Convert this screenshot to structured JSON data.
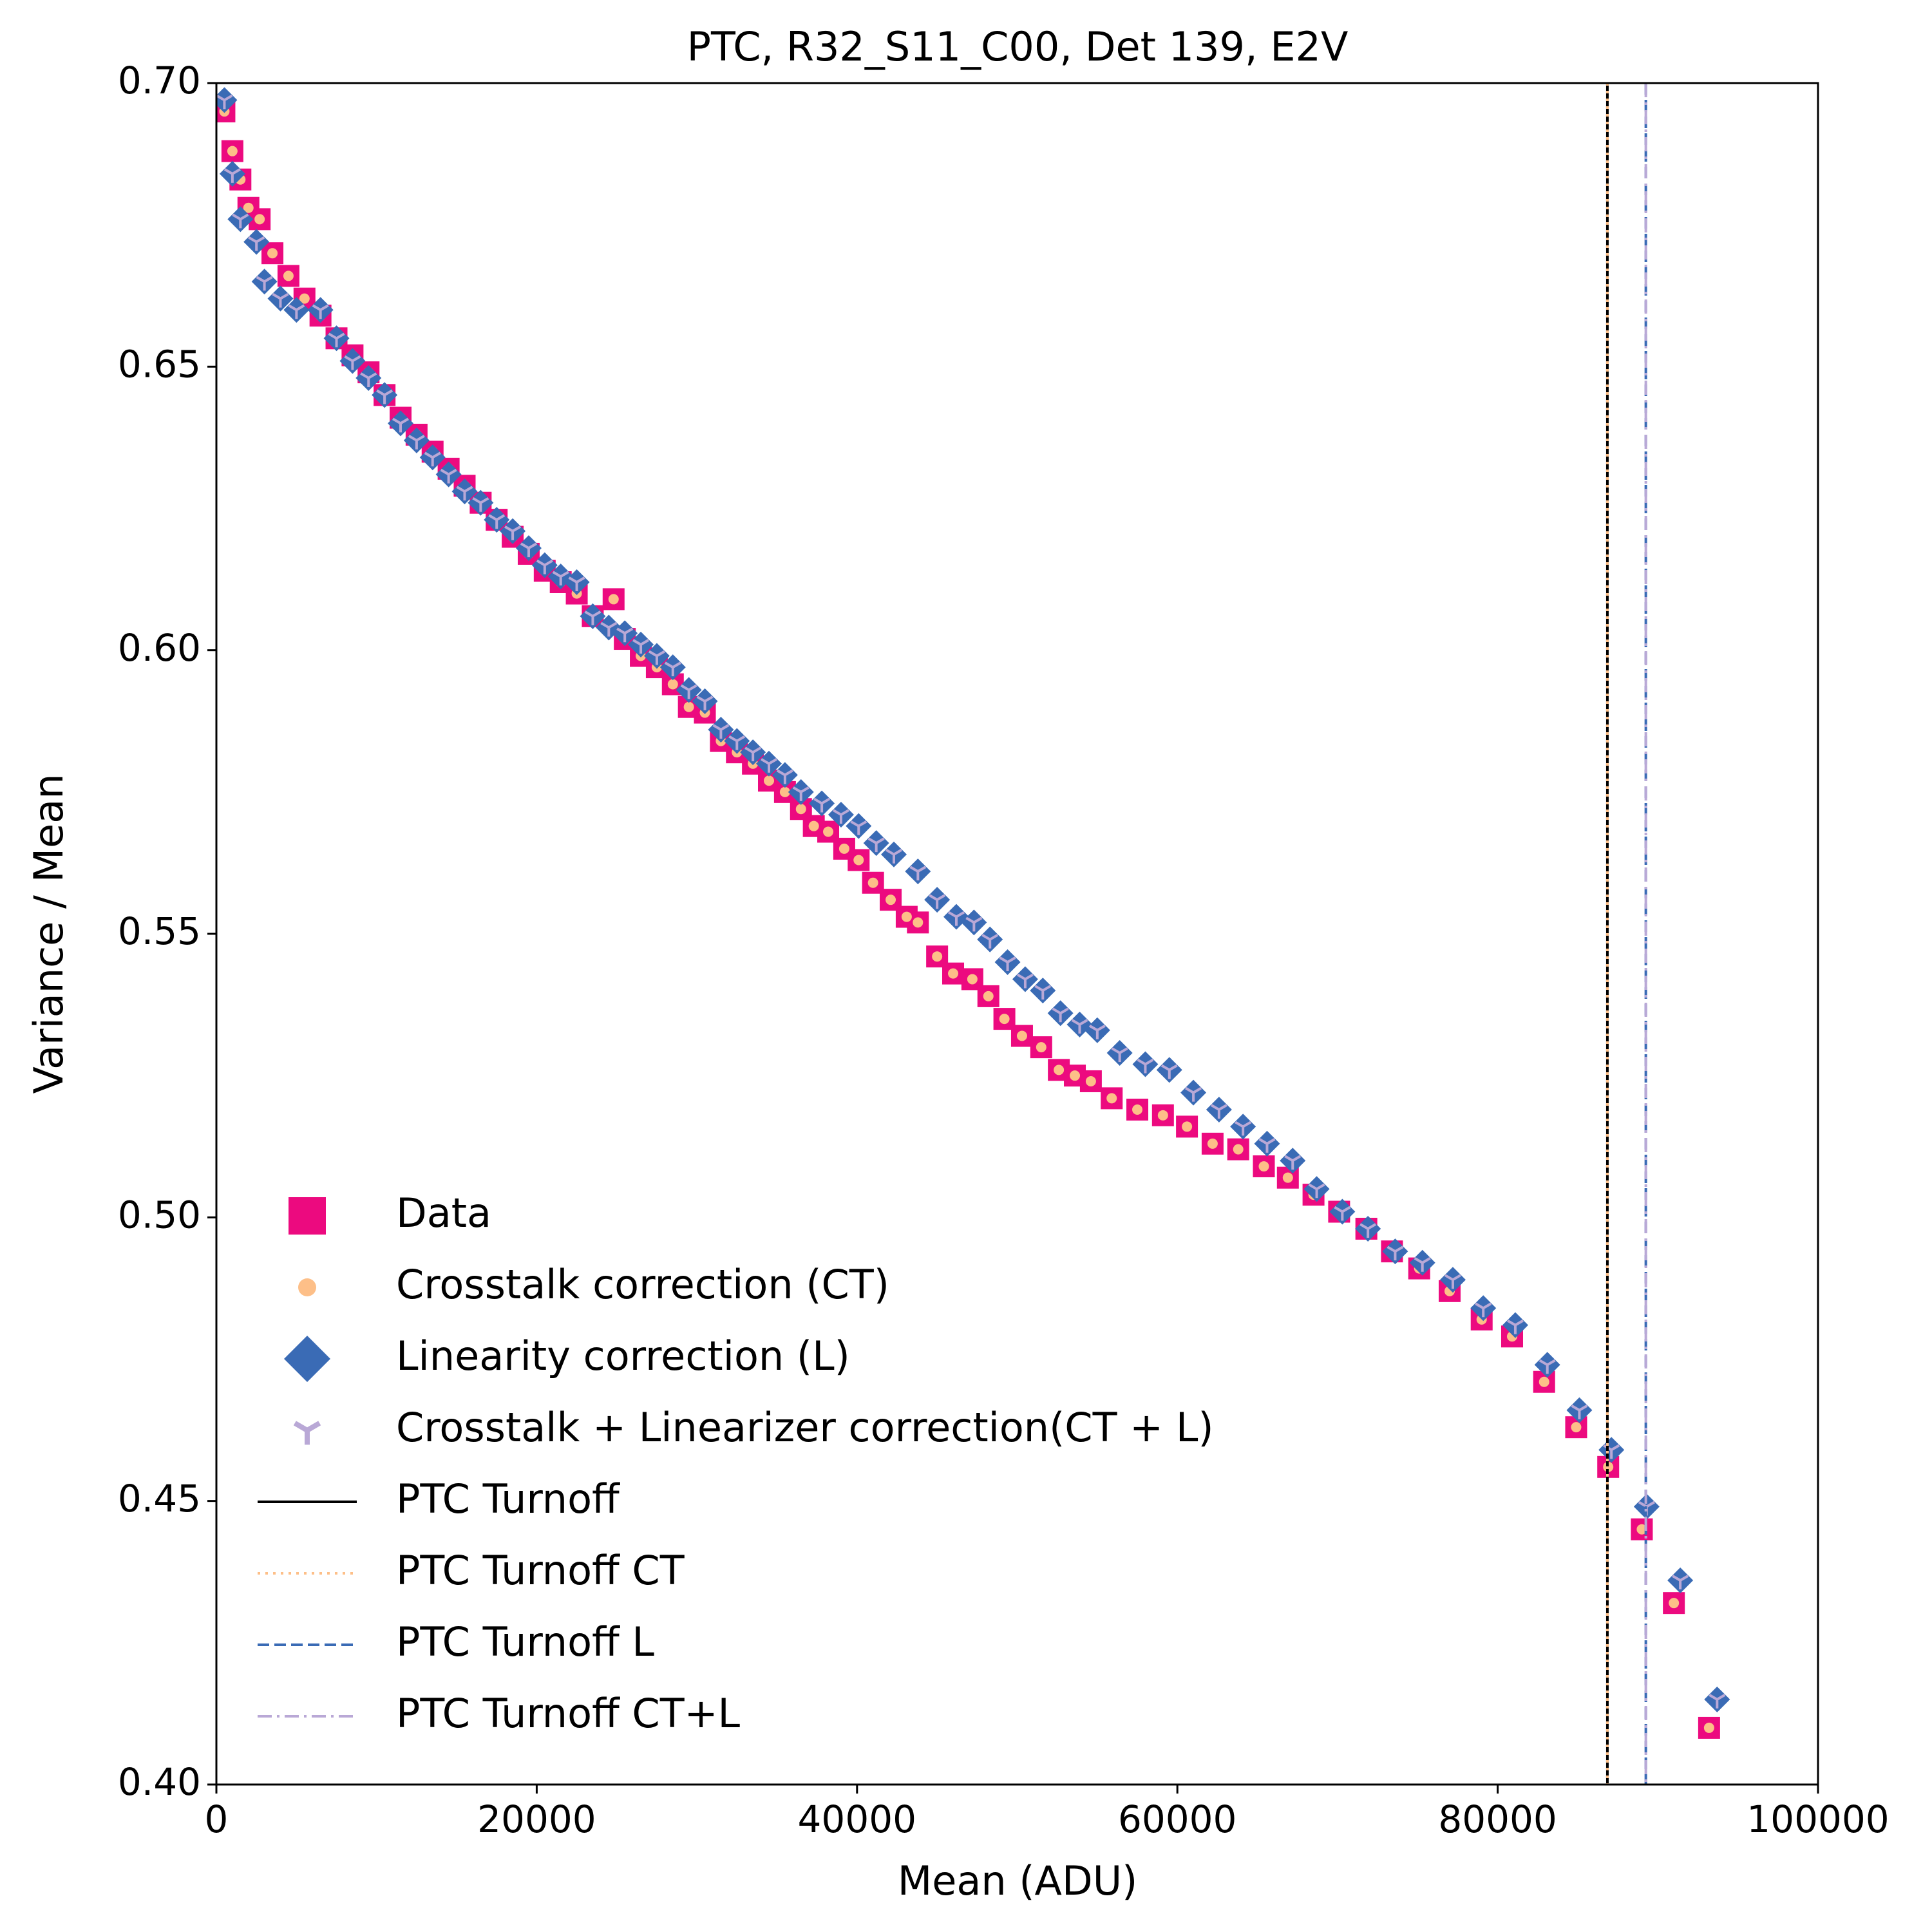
{
  "chart_data": {
    "type": "scatter",
    "title": "PTC, R32_S11_C00, Det 139, E2V",
    "xlabel": "Mean  (ADU)",
    "ylabel": "Variance / Mean",
    "xlim": [
      0,
      100000
    ],
    "ylim": [
      0.4,
      0.7
    ],
    "xticks": [
      0,
      20000,
      40000,
      60000,
      80000,
      100000
    ],
    "yticks": [
      {
        "value": 0.4,
        "label": "0.40"
      },
      0.45,
      {
        "value": 0.5,
        "label": "0.50"
      },
      0.55,
      {
        "value": 0.6,
        "label": "0.60"
      },
      0.65,
      {
        "value": 0.7,
        "label": "0.70"
      }
    ],
    "legend": "lower left",
    "series": [
      {
        "name": "Data",
        "color": "#ec0a7f",
        "marker": "square",
        "x": [
          500,
          1000,
          1500,
          2000,
          2700,
          3500,
          4500,
          5500,
          6500,
          7500,
          8500,
          9500,
          10500,
          11500,
          12500,
          13500,
          14500,
          15500,
          16500,
          17500,
          18500,
          19500,
          20500,
          21500,
          22500,
          23500,
          24800,
          25500,
          26500,
          27500,
          28500,
          29500,
          30500,
          31500,
          32500,
          33500,
          34500,
          35500,
          36500,
          37300,
          38200,
          39200,
          40100,
          41000,
          42100,
          43100,
          43800,
          45000,
          46000,
          47200,
          48200,
          49200,
          50300,
          51500,
          52600,
          53600,
          54600,
          55900,
          57500,
          59100,
          60600,
          62200,
          63800,
          65400,
          66900,
          68500,
          70100,
          71800,
          73400,
          75100,
          77000,
          79000,
          80900,
          82900,
          84900,
          86900,
          89000,
          91000,
          93200
        ],
        "values": [
          0.695,
          0.688,
          0.683,
          0.678,
          0.676,
          0.67,
          0.666,
          0.662,
          0.659,
          0.655,
          0.652,
          0.649,
          0.645,
          0.641,
          0.638,
          0.635,
          0.632,
          0.629,
          0.626,
          0.623,
          0.62,
          0.617,
          0.614,
          0.612,
          0.61,
          0.606,
          0.609,
          0.602,
          0.599,
          0.597,
          0.594,
          0.59,
          0.589,
          0.584,
          0.582,
          0.58,
          0.577,
          0.575,
          0.572,
          0.569,
          0.568,
          0.565,
          0.563,
          0.559,
          0.556,
          0.553,
          0.552,
          0.546,
          0.543,
          0.542,
          0.539,
          0.535,
          0.532,
          0.53,
          0.526,
          0.525,
          0.524,
          0.521,
          0.519,
          0.518,
          0.516,
          0.513,
          0.512,
          0.509,
          0.507,
          0.504,
          0.501,
          0.498,
          0.494,
          0.491,
          0.487,
          0.482,
          0.479,
          0.471,
          0.463,
          0.456,
          0.445,
          0.432,
          0.41
        ]
      },
      {
        "name": "Crosstalk correction (CT)",
        "color": "#fdbf88",
        "marker": "circle",
        "x": [
          500,
          1000,
          1500,
          2000,
          2700,
          3500,
          4500,
          5500,
          6500,
          7500,
          8500,
          9500,
          10500,
          11500,
          12500,
          13500,
          14500,
          15500,
          16500,
          17500,
          18500,
          19500,
          20500,
          21500,
          22500,
          23500,
          24800,
          25500,
          26500,
          27500,
          28500,
          29500,
          30500,
          31500,
          32500,
          33500,
          34500,
          35500,
          36500,
          37300,
          38200,
          39200,
          40100,
          41000,
          42100,
          43100,
          43800,
          45000,
          46000,
          47200,
          48200,
          49200,
          50300,
          51500,
          52600,
          53600,
          54600,
          55900,
          57500,
          59100,
          60600,
          62200,
          63800,
          65400,
          66900,
          68500,
          70100,
          71800,
          73400,
          75100,
          77000,
          79000,
          80900,
          82900,
          84900,
          86900,
          89000,
          91000,
          93200
        ],
        "values": [
          0.695,
          0.688,
          0.683,
          0.678,
          0.676,
          0.67,
          0.666,
          0.662,
          0.659,
          0.655,
          0.652,
          0.649,
          0.645,
          0.641,
          0.638,
          0.635,
          0.632,
          0.629,
          0.626,
          0.623,
          0.62,
          0.617,
          0.614,
          0.612,
          0.61,
          0.606,
          0.609,
          0.602,
          0.599,
          0.597,
          0.594,
          0.59,
          0.589,
          0.584,
          0.582,
          0.58,
          0.577,
          0.575,
          0.572,
          0.569,
          0.568,
          0.565,
          0.563,
          0.559,
          0.556,
          0.553,
          0.552,
          0.546,
          0.543,
          0.542,
          0.539,
          0.535,
          0.532,
          0.53,
          0.526,
          0.525,
          0.524,
          0.521,
          0.519,
          0.518,
          0.516,
          0.513,
          0.512,
          0.509,
          0.507,
          0.504,
          0.501,
          0.498,
          0.494,
          0.491,
          0.487,
          0.482,
          0.479,
          0.471,
          0.463,
          0.456,
          0.445,
          0.432,
          0.41
        ]
      },
      {
        "name": "Linearity correction (L)",
        "color": "#3a6bb5",
        "marker": "diamond",
        "x": [
          500,
          1000,
          1500,
          2500,
          3000,
          4000,
          5000,
          6500,
          7500,
          8500,
          9500,
          10500,
          11500,
          12500,
          13500,
          14500,
          15500,
          16500,
          17500,
          18500,
          19500,
          20500,
          21500,
          22500,
          23500,
          24500,
          25500,
          26500,
          27500,
          28500,
          29500,
          30500,
          31500,
          32500,
          33500,
          34500,
          35500,
          36500,
          37800,
          39000,
          40100,
          41200,
          42300,
          43800,
          45000,
          46200,
          47300,
          48300,
          49400,
          50500,
          51600,
          52700,
          53900,
          55000,
          56400,
          58000,
          59500,
          61000,
          62600,
          64100,
          65600,
          67200,
          68700,
          70300,
          71900,
          73600,
          75300,
          77200,
          79100,
          81100,
          83100,
          85100,
          87100,
          89300,
          91400,
          93700
        ],
        "values": [
          0.697,
          0.684,
          0.676,
          0.672,
          0.665,
          0.662,
          0.66,
          0.66,
          0.655,
          0.651,
          0.648,
          0.645,
          0.64,
          0.637,
          0.634,
          0.631,
          0.628,
          0.626,
          0.623,
          0.621,
          0.618,
          0.615,
          0.613,
          0.612,
          0.606,
          0.604,
          0.603,
          0.601,
          0.599,
          0.597,
          0.593,
          0.591,
          0.586,
          0.584,
          0.582,
          0.58,
          0.578,
          0.575,
          0.573,
          0.571,
          0.569,
          0.566,
          0.564,
          0.561,
          0.556,
          0.553,
          0.552,
          0.549,
          0.545,
          0.542,
          0.54,
          0.536,
          0.534,
          0.533,
          0.529,
          0.527,
          0.526,
          0.522,
          0.519,
          0.516,
          0.513,
          0.51,
          0.505,
          0.501,
          0.498,
          0.494,
          0.492,
          0.489,
          0.484,
          0.481,
          0.474,
          0.466,
          0.459,
          0.449,
          0.436,
          0.415
        ]
      },
      {
        "name": "Crosstalk + Linearizer correction(CT + L)",
        "color": "#b9a8d6",
        "marker": "tri_down",
        "x": [
          500,
          1000,
          1500,
          2500,
          3000,
          4000,
          5000,
          6500,
          7500,
          8500,
          9500,
          10500,
          11500,
          12500,
          13500,
          14500,
          15500,
          16500,
          17500,
          18500,
          19500,
          20500,
          21500,
          22500,
          23500,
          24500,
          25500,
          26500,
          27500,
          28500,
          29500,
          30500,
          31500,
          32500,
          33500,
          34500,
          35500,
          36500,
          37800,
          39000,
          40100,
          41200,
          42300,
          43800,
          45000,
          46200,
          47300,
          48300,
          49400,
          50500,
          51600,
          52700,
          53900,
          55000,
          56400,
          58000,
          59500,
          61000,
          62600,
          64100,
          65600,
          67200,
          68700,
          70300,
          71900,
          73600,
          75300,
          77200,
          79100,
          81100,
          83100,
          85100,
          87100,
          89300,
          91400,
          93700
        ],
        "values": [
          0.697,
          0.684,
          0.676,
          0.672,
          0.665,
          0.662,
          0.66,
          0.66,
          0.655,
          0.651,
          0.648,
          0.645,
          0.64,
          0.637,
          0.634,
          0.631,
          0.628,
          0.626,
          0.623,
          0.621,
          0.618,
          0.615,
          0.613,
          0.612,
          0.606,
          0.604,
          0.603,
          0.601,
          0.599,
          0.597,
          0.593,
          0.591,
          0.586,
          0.584,
          0.582,
          0.58,
          0.578,
          0.575,
          0.573,
          0.571,
          0.569,
          0.566,
          0.564,
          0.561,
          0.556,
          0.553,
          0.552,
          0.549,
          0.545,
          0.542,
          0.54,
          0.536,
          0.534,
          0.533,
          0.529,
          0.527,
          0.526,
          0.522,
          0.519,
          0.516,
          0.513,
          0.51,
          0.505,
          0.501,
          0.498,
          0.494,
          0.492,
          0.489,
          0.484,
          0.481,
          0.474,
          0.466,
          0.459,
          0.449,
          0.436,
          0.415
        ]
      }
    ],
    "vlines": [
      {
        "name": "PTC Turnoff",
        "x": 86850,
        "color": "#000000",
        "style": "solid"
      },
      {
        "name": "PTC Turnoff CT",
        "x": 86850,
        "color": "#fdbf88",
        "style": "dotted"
      },
      {
        "name": "PTC Turnoff L",
        "x": 89250,
        "color": "#3a6bb5",
        "style": "dashed"
      },
      {
        "name": "PTC Turnoff CT+L",
        "x": 89250,
        "color": "#b9a8d6",
        "style": "dashdot"
      }
    ]
  }
}
